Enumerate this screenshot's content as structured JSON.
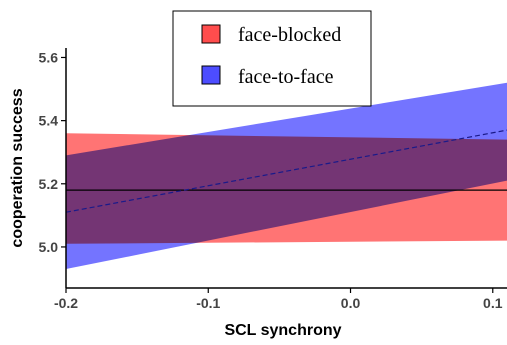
{
  "chart_data": {
    "type": "line",
    "xlabel": "SCL synchrony",
    "ylabel": "cooperation success",
    "xlim": [
      -0.2,
      0.11
    ],
    "ylim": [
      4.87,
      5.63
    ],
    "x_ticks": [
      -0.2,
      -0.1,
      0.0,
      0.1
    ],
    "x_tick_labels": [
      "-0.2",
      "-0.1",
      "0.0",
      "0.1"
    ],
    "y_ticks": [
      5.0,
      5.2,
      5.4,
      5.6
    ],
    "y_tick_labels": [
      "5.0",
      "5.2",
      "5.4",
      "5.6"
    ],
    "grid": false,
    "legend_placement": "top-center",
    "series": [
      {
        "name": "face-blocked",
        "color": "#ff4d4d",
        "line_color": "#000000",
        "line_style": "solid",
        "x": [
          -0.2,
          0.11
        ],
        "y": [
          5.18,
          5.18
        ],
        "ci_lower": [
          5.01,
          5.02
        ],
        "ci_upper": [
          5.36,
          5.34
        ]
      },
      {
        "name": "face-to-face",
        "color": "#4d4dff",
        "line_color": "#1a1a8a",
        "line_style": "dashed",
        "x": [
          -0.2,
          0.11
        ],
        "y": [
          5.11,
          5.37
        ],
        "ci_lower": [
          4.93,
          5.21
        ],
        "ci_upper": [
          5.29,
          5.52
        ]
      }
    ]
  }
}
